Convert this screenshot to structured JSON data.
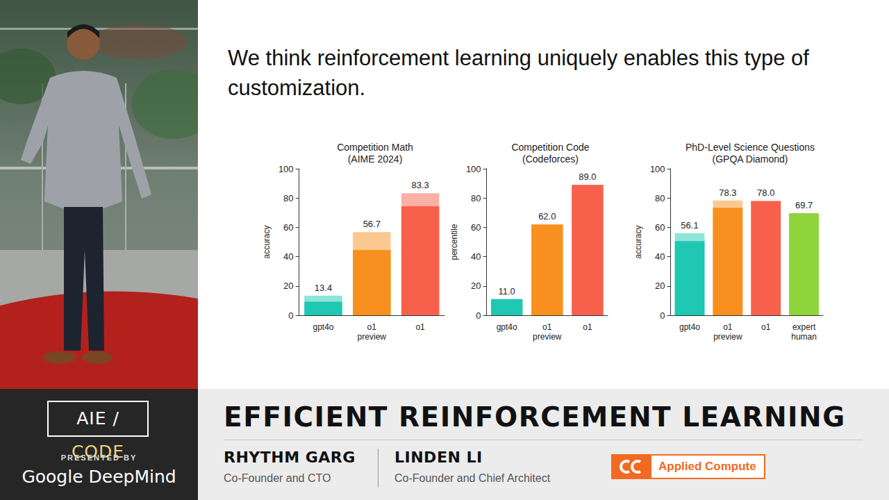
{
  "slide": {
    "title": "We think reinforcement learning uniquely enables this type of customization."
  },
  "chart_data": [
    {
      "type": "bar",
      "title": "Competition Math",
      "subtitle": "(AIME 2024)",
      "y_label": "accuracy",
      "categories": [
        "gpt4o",
        "o1\npreview",
        "o1"
      ],
      "values": [
        13.4,
        56.7,
        83.3
      ],
      "value_labels": [
        "13.4",
        "56.7",
        "83.3"
      ],
      "base_values": [
        9.3,
        44.6,
        74.4
      ],
      "colors": [
        "#1fc8b2",
        "#f7901e",
        "#f7614b"
      ],
      "ylim": [
        0,
        100
      ],
      "yticks": [
        0,
        20,
        40,
        60,
        80,
        100
      ],
      "grid": false,
      "data_labels": true
    },
    {
      "type": "bar",
      "title": "Competition Code",
      "subtitle": "(Codeforces)",
      "y_label": "percentile",
      "categories": [
        "gpt4o",
        "o1\npreview",
        "o1"
      ],
      "values": [
        11.0,
        62.0,
        89.0
      ],
      "value_labels": [
        "11.0",
        "62.0",
        "89.0"
      ],
      "base_values": [
        11.0,
        62.0,
        89.0
      ],
      "colors": [
        "#1fc8b2",
        "#f7901e",
        "#f7614b"
      ],
      "ylim": [
        0,
        100
      ],
      "yticks": [
        0,
        20,
        40,
        60,
        80,
        100
      ],
      "grid": false,
      "data_labels": true
    },
    {
      "type": "bar",
      "title": "PhD-Level Science Questions",
      "subtitle": "(GPQA Diamond)",
      "y_label": "accuracy",
      "categories": [
        "gpt4o",
        "o1\npreview",
        "o1",
        "expert\nhuman"
      ],
      "values": [
        56.1,
        78.3,
        78.0,
        69.7
      ],
      "value_labels": [
        "56.1",
        "78.3",
        "78.0",
        "69.7"
      ],
      "base_values": [
        50.6,
        73.3,
        78.0,
        69.7
      ],
      "colors": [
        "#1fc8b2",
        "#f7901e",
        "#f7614b",
        "#8ed43a"
      ],
      "ylim": [
        0,
        100
      ],
      "yticks": [
        0,
        20,
        40,
        60,
        80,
        100
      ],
      "grid": false,
      "data_labels": true
    }
  ],
  "banner": {
    "event_logo": {
      "left": "AIE",
      "separator": "/",
      "right": "CODE"
    },
    "presented_by": "PRESENTED BY",
    "sponsor": "Google DeepMind",
    "talk_title": "EFFICIENT REINFORCEMENT LEARNING",
    "speakers": [
      {
        "name": "RHYTHM GARG",
        "role": "Co-Founder and CTO"
      },
      {
        "name": "LINDEN LI",
        "role": "Co-Founder and Chief Architect"
      }
    ],
    "company": "Applied Compute"
  }
}
